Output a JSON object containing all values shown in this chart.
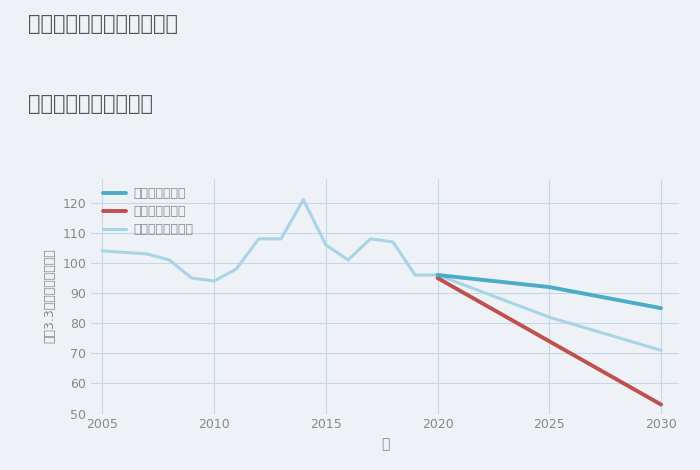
{
  "title_line1": "愛知県豊橋市高師本郷町の",
  "title_line2": "中古戸建ての価格推移",
  "xlabel": "年",
  "ylabel": "坪（3.3㎡）単価（万円）",
  "background_color": "#eef2f7",
  "plot_background": "#eef2f7",
  "xlim": [
    2004.5,
    2030.8
  ],
  "ylim": [
    50,
    128
  ],
  "yticks": [
    50,
    60,
    70,
    80,
    90,
    100,
    110,
    120
  ],
  "xticks": [
    2005,
    2010,
    2015,
    2020,
    2025,
    2030
  ],
  "good_scenario": {
    "x": [
      2020,
      2025,
      2030
    ],
    "y": [
      96,
      92,
      85
    ],
    "color": "#4bacc6",
    "label": "グッドシナリオ",
    "linewidth": 2.8
  },
  "bad_scenario": {
    "x": [
      2020,
      2025,
      2030
    ],
    "y": [
      95,
      74,
      53
    ],
    "color": "#c0504d",
    "label": "バッドシナリオ",
    "linewidth": 2.8
  },
  "normal_scenario_historical": {
    "x": [
      2005,
      2007,
      2008,
      2009,
      2010,
      2011,
      2012,
      2013,
      2014,
      2015,
      2016,
      2017,
      2018,
      2019,
      2020
    ],
    "y": [
      104,
      103,
      101,
      95,
      94,
      98,
      108,
      108,
      121,
      106,
      101,
      108,
      107,
      96,
      96
    ],
    "color": "#a8d4e6",
    "label": "ノーマルシナリオ",
    "linewidth": 2.2
  },
  "normal_scenario_future": {
    "x": [
      2020,
      2025,
      2030
    ],
    "y": [
      96,
      82,
      71
    ],
    "color": "#a8d4e6",
    "linewidth": 2.2
  },
  "title_color": "#555555",
  "tick_color": "#888888",
  "grid_color": "#c5d8ea",
  "label_color": "#888888"
}
